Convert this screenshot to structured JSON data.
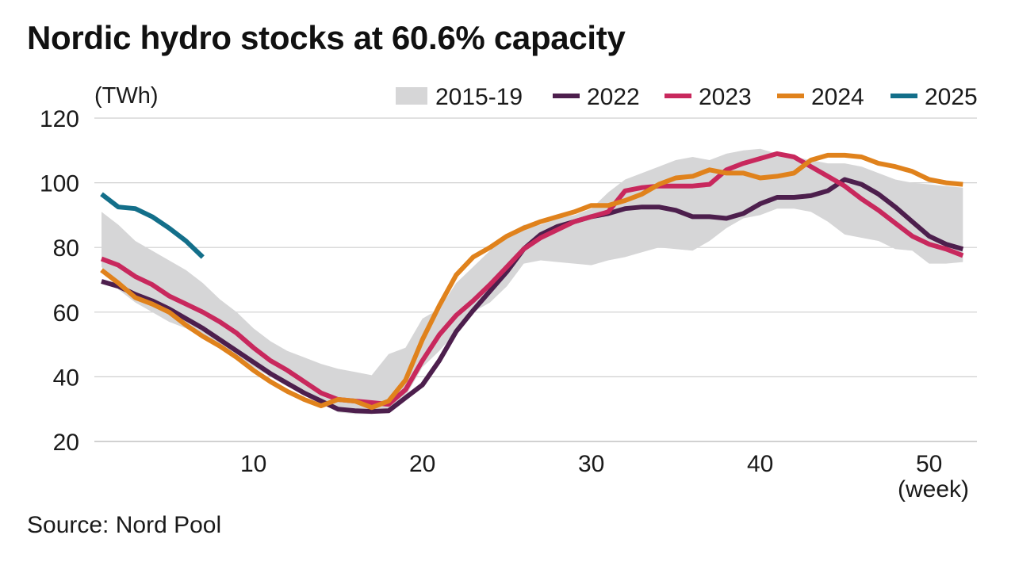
{
  "title": "Nordic hydro stocks at 60.6% capacity",
  "source": "Source: Nord Pool",
  "chart_data": {
    "type": "line",
    "ylabel": "(TWh)",
    "xlabel": "(week)",
    "ylim": [
      20,
      120
    ],
    "xlim": [
      1,
      53
    ],
    "yticks": [
      20,
      40,
      60,
      80,
      100,
      120
    ],
    "xticks": [
      10,
      20,
      30,
      40,
      50
    ],
    "grid": "horizontal",
    "legend_position": "top-right",
    "band": {
      "name": "2015-19",
      "color": "#d6d6d7",
      "x": [
        1,
        2,
        3,
        4,
        5,
        6,
        7,
        8,
        9,
        10,
        11,
        12,
        13,
        14,
        15,
        16,
        17,
        18,
        19,
        20,
        21,
        22,
        23,
        24,
        25,
        26,
        27,
        28,
        29,
        30,
        31,
        32,
        33,
        34,
        35,
        36,
        37,
        38,
        39,
        40,
        41,
        42,
        43,
        44,
        45,
        46,
        47,
        48,
        49,
        50,
        51,
        52
      ],
      "upper": [
        91,
        87,
        82,
        79,
        76,
        73,
        69,
        64,
        60,
        55,
        51,
        48,
        46,
        44,
        42.5,
        41.5,
        40.5,
        47,
        49,
        58,
        61,
        69,
        74,
        79,
        84,
        87,
        87,
        89,
        90,
        92,
        97,
        101,
        103,
        105,
        107,
        108,
        107,
        109,
        110,
        110.5,
        109,
        108,
        107,
        106,
        106,
        105,
        103,
        101,
        100,
        99.5,
        99,
        98.5
      ],
      "lower": [
        74,
        67,
        63,
        60,
        57,
        55,
        52,
        49,
        46,
        43,
        40,
        37,
        35,
        33,
        29,
        28.5,
        28.5,
        29.5,
        34,
        43,
        48,
        54,
        60,
        63,
        68,
        75,
        76,
        75.5,
        75,
        74.5,
        76,
        77,
        78.5,
        80,
        79.5,
        79,
        82,
        86,
        89,
        90,
        92,
        92,
        91,
        88,
        84,
        83,
        82,
        79.5,
        79,
        75,
        75,
        75.5
      ]
    },
    "series": [
      {
        "name": "2022",
        "color": "#4d1f4d",
        "x": [
          1,
          2,
          3,
          4,
          5,
          6,
          7,
          8,
          9,
          10,
          11,
          12,
          13,
          14,
          15,
          16,
          17,
          18,
          19,
          20,
          21,
          22,
          23,
          24,
          25,
          26,
          27,
          28,
          29,
          30,
          31,
          32,
          33,
          34,
          35,
          36,
          37,
          38,
          39,
          40,
          41,
          42,
          43,
          44,
          45,
          46,
          47,
          48,
          49,
          50,
          51,
          52
        ],
        "values": [
          69.5,
          68,
          65.5,
          63.5,
          61,
          58,
          55,
          51.5,
          48,
          44.5,
          41,
          38,
          35,
          32.5,
          30,
          29.5,
          29.3,
          29.5,
          33.5,
          37.5,
          45,
          54,
          60.5,
          66.5,
          72.5,
          79.5,
          84,
          86.5,
          88,
          89.5,
          90.5,
          92,
          92.5,
          92.5,
          91.5,
          89.5,
          89.5,
          89,
          90.5,
          93.5,
          95.5,
          95.5,
          96,
          97.5,
          101,
          99.5,
          96.5,
          92.5,
          88,
          83.5,
          81,
          79.5
        ]
      },
      {
        "name": "2023",
        "color": "#c8285d",
        "x": [
          1,
          2,
          3,
          4,
          5,
          6,
          7,
          8,
          9,
          10,
          11,
          12,
          13,
          14,
          15,
          16,
          17,
          18,
          19,
          20,
          21,
          22,
          23,
          24,
          25,
          26,
          27,
          28,
          29,
          30,
          31,
          32,
          33,
          34,
          35,
          36,
          37,
          38,
          39,
          40,
          41,
          42,
          43,
          44,
          45,
          46,
          47,
          48,
          49,
          50,
          51,
          52
        ],
        "values": [
          76.5,
          74.5,
          71,
          68.5,
          65,
          62.5,
          60,
          57,
          53.5,
          49,
          45,
          42,
          38.5,
          35,
          33,
          32.5,
          32,
          31.5,
          36,
          45,
          53,
          59,
          63.5,
          68.5,
          74,
          79.5,
          83,
          85.5,
          88,
          89.5,
          91,
          97.5,
          98.5,
          99,
          99,
          99,
          99.5,
          104,
          106,
          107.5,
          109,
          108,
          105,
          102,
          99,
          95,
          91.5,
          87.5,
          83.5,
          81,
          79.5,
          77.5
        ]
      },
      {
        "name": "2024",
        "color": "#e0821c",
        "x": [
          1,
          2,
          3,
          4,
          5,
          6,
          7,
          8,
          9,
          10,
          11,
          12,
          13,
          14,
          15,
          16,
          17,
          18,
          19,
          20,
          21,
          22,
          23,
          24,
          25,
          26,
          27,
          28,
          29,
          30,
          31,
          32,
          33,
          34,
          35,
          36,
          37,
          38,
          39,
          40,
          41,
          42,
          43,
          44,
          45,
          46,
          47,
          48,
          49,
          50,
          51,
          52
        ],
        "values": [
          73,
          69,
          64.5,
          62.5,
          60,
          56,
          52.5,
          49.5,
          46,
          42,
          38.5,
          35.5,
          33,
          31,
          33,
          32.5,
          30.5,
          32.5,
          39,
          51.5,
          62,
          71.5,
          77,
          80,
          83.5,
          86,
          88,
          89.5,
          91,
          93,
          93,
          94.5,
          96.5,
          99.5,
          101.5,
          102,
          104,
          103,
          103,
          101.5,
          102,
          103,
          107,
          108.5,
          108.5,
          108,
          106,
          105,
          103.5,
          101,
          100,
          99.5
        ]
      },
      {
        "name": "2025",
        "color": "#136f8a",
        "x": [
          1,
          2,
          3,
          4,
          5,
          6,
          7
        ],
        "values": [
          96.5,
          92.5,
          92,
          89.5,
          86,
          82,
          77
        ]
      }
    ]
  }
}
